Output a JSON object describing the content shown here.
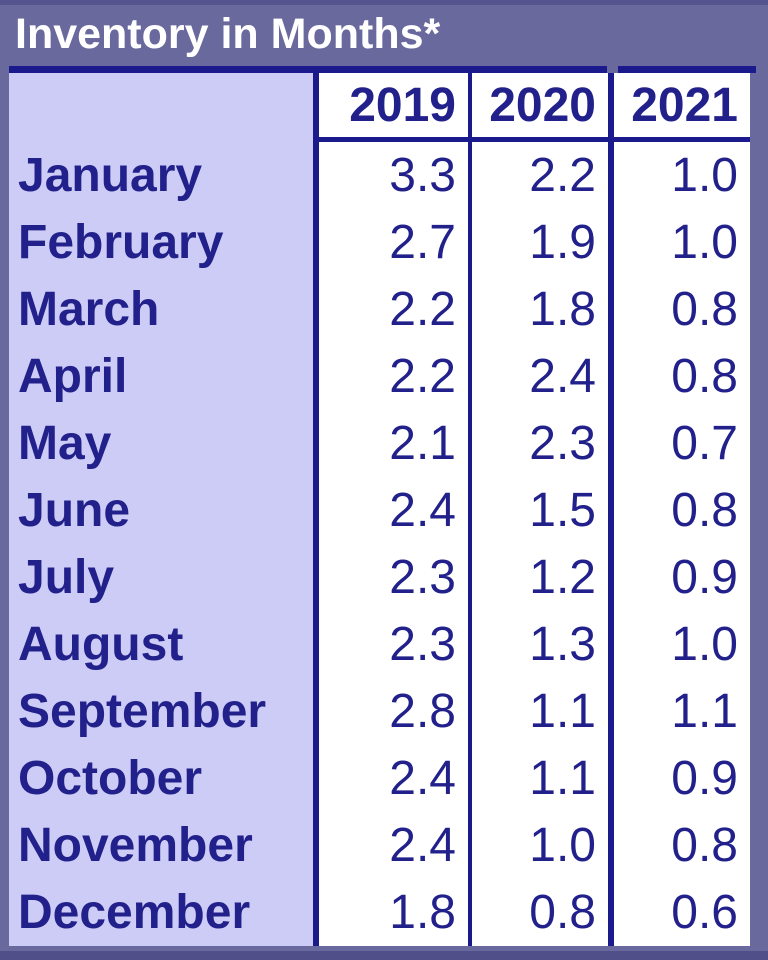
{
  "title": "Inventory in Months*",
  "colors": {
    "background_purple": "#6A699D",
    "month_column_lavender": "#CDCCF6",
    "cell_white": "#FFFFFF",
    "navy_text_border": "#1B1A8C",
    "title_text": "#FFFFFF"
  },
  "table": {
    "year_headers": [
      "2019",
      "2020",
      "2021"
    ],
    "rows": [
      {
        "month": "January",
        "values": [
          "3.3",
          "2.2",
          "1.0"
        ]
      },
      {
        "month": "February",
        "values": [
          "2.7",
          "1.9",
          "1.0"
        ]
      },
      {
        "month": "March",
        "values": [
          "2.2",
          "1.8",
          "0.8"
        ]
      },
      {
        "month": "April",
        "values": [
          "2.2",
          "2.4",
          "0.8"
        ]
      },
      {
        "month": "May",
        "values": [
          "2.1",
          "2.3",
          "0.7"
        ]
      },
      {
        "month": "June",
        "values": [
          "2.4",
          "1.5",
          "0.8"
        ]
      },
      {
        "month": "July",
        "values": [
          "2.3",
          "1.2",
          "0.9"
        ]
      },
      {
        "month": "August",
        "values": [
          "2.3",
          "1.3",
          "1.0"
        ]
      },
      {
        "month": "September",
        "values": [
          "2.8",
          "1.1",
          "1.1"
        ]
      },
      {
        "month": "October",
        "values": [
          "2.4",
          "1.1",
          "0.9"
        ]
      },
      {
        "month": "November",
        "values": [
          "2.4",
          "1.0",
          "0.8"
        ]
      },
      {
        "month": "December",
        "values": [
          "1.8",
          "0.8",
          "0.6"
        ]
      }
    ]
  },
  "chart_data": {
    "type": "table",
    "title": "Inventory in Months*",
    "categories": [
      "January",
      "February",
      "March",
      "April",
      "May",
      "June",
      "July",
      "August",
      "September",
      "October",
      "November",
      "December"
    ],
    "series": [
      {
        "name": "2019",
        "values": [
          3.3,
          2.7,
          2.2,
          2.2,
          2.1,
          2.4,
          2.3,
          2.3,
          2.8,
          2.4,
          2.4,
          1.8
        ]
      },
      {
        "name": "2020",
        "values": [
          2.2,
          1.9,
          1.8,
          2.4,
          2.3,
          1.5,
          1.2,
          1.3,
          1.1,
          1.1,
          1.0,
          0.8
        ]
      },
      {
        "name": "2021",
        "values": [
          1.0,
          1.0,
          0.8,
          0.8,
          0.7,
          0.8,
          0.9,
          1.0,
          1.1,
          0.9,
          0.8,
          0.6
        ]
      }
    ]
  }
}
